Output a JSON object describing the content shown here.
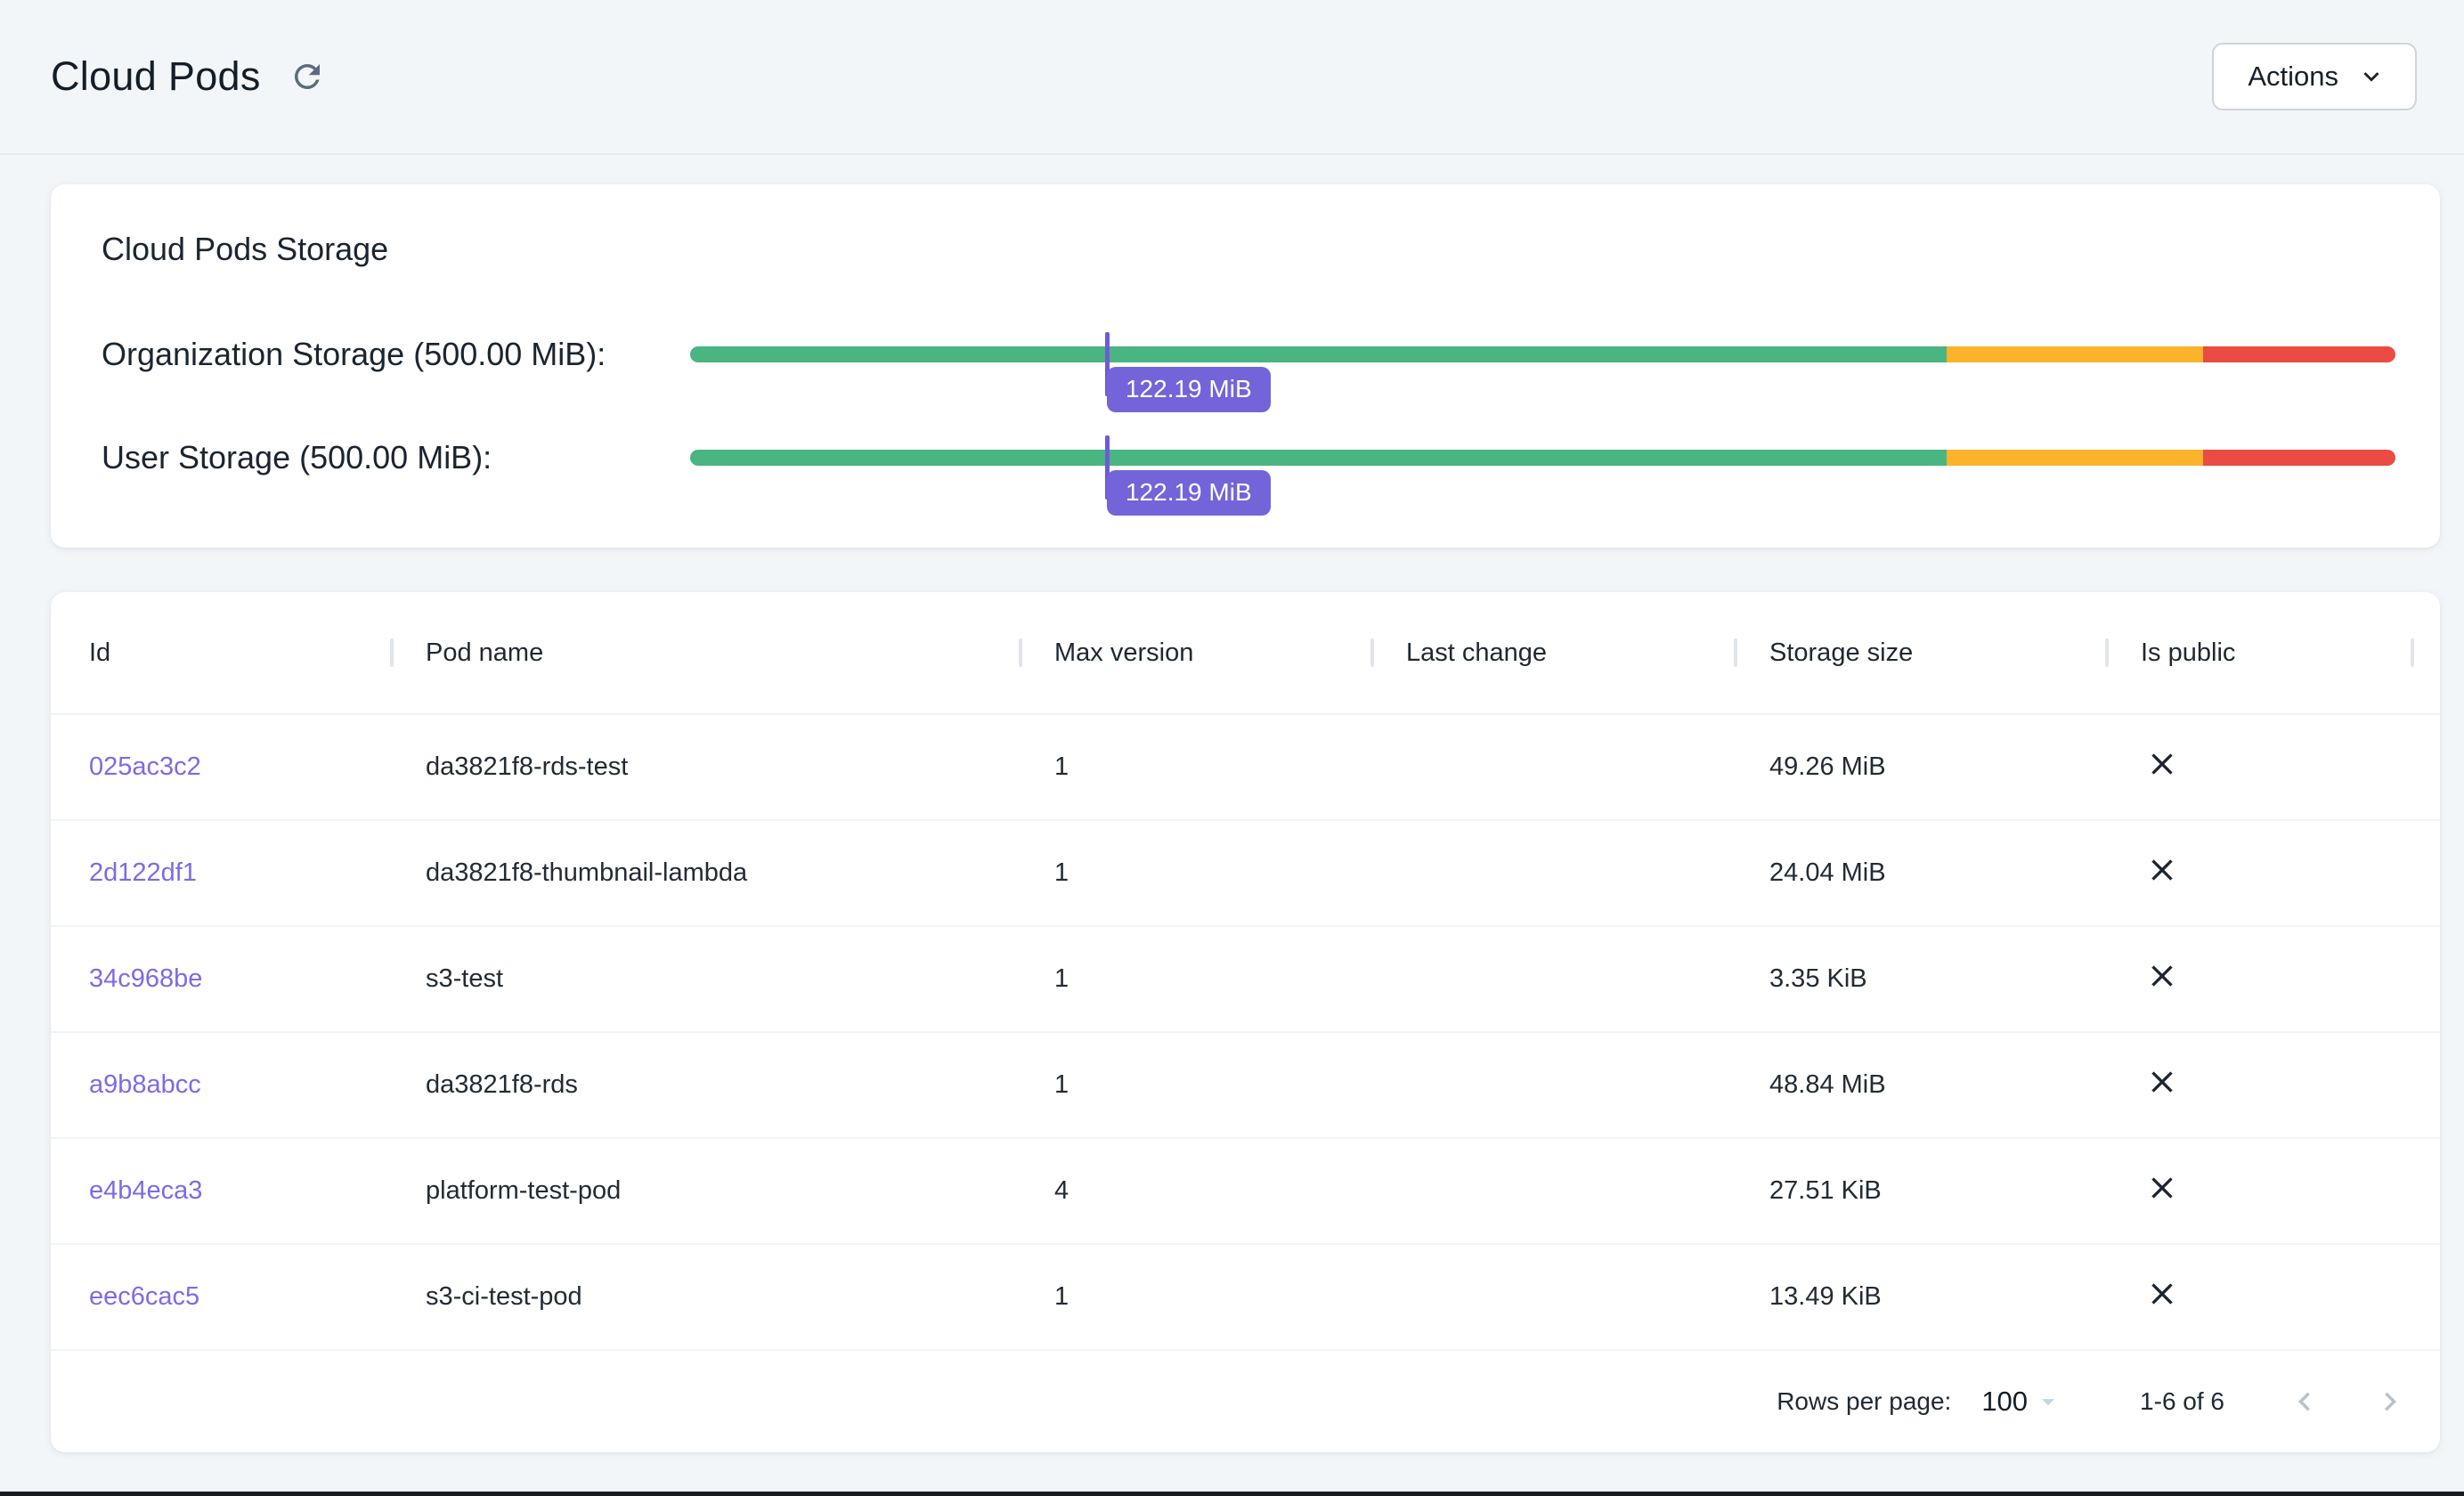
{
  "header": {
    "title": "Cloud Pods",
    "actions_label": "Actions"
  },
  "storage": {
    "card_title": "Cloud Pods Storage",
    "colors": {
      "safe": "#49b581",
      "warning": "#fbb32b",
      "critical": "#ea4b42",
      "marker": "#6e5bd6",
      "tooltip": "#7464da"
    },
    "segments": [
      {
        "name": "safe",
        "percent": 73.7
      },
      {
        "name": "warning",
        "percent": 15.0
      },
      {
        "name": "critical",
        "percent": 11.3
      }
    ],
    "bars": [
      {
        "label": "Organization Storage (500.00 MiB):",
        "used_mib": 122.19,
        "total_mib": 500,
        "tooltip": "122.19 MiB"
      },
      {
        "label": "User Storage (500.00 MiB):",
        "used_mib": 122.19,
        "total_mib": 500,
        "tooltip": "122.19 MiB"
      }
    ]
  },
  "table": {
    "id_link_color": "#7c6be6",
    "columns": [
      "Id",
      "Pod name",
      "Max version",
      "Last change",
      "Storage size",
      "Is public"
    ],
    "rows": [
      {
        "id": "025ac3c2",
        "pod_name": "da3821f8-rds-test",
        "max_version": "1",
        "last_change": "",
        "storage_size": "49.26 MiB",
        "is_public": false
      },
      {
        "id": "2d122df1",
        "pod_name": "da3821f8-thumbnail-lambda",
        "max_version": "1",
        "last_change": "",
        "storage_size": "24.04 MiB",
        "is_public": false
      },
      {
        "id": "34c968be",
        "pod_name": "s3-test",
        "max_version": "1",
        "last_change": "",
        "storage_size": "3.35 KiB",
        "is_public": false
      },
      {
        "id": "a9b8abcc",
        "pod_name": "da3821f8-rds",
        "max_version": "1",
        "last_change": "",
        "storage_size": "48.84 MiB",
        "is_public": false
      },
      {
        "id": "e4b4eca3",
        "pod_name": "platform-test-pod",
        "max_version": "4",
        "last_change": "",
        "storage_size": "27.51 KiB",
        "is_public": false
      },
      {
        "id": "eec6cac5",
        "pod_name": "s3-ci-test-pod",
        "max_version": "1",
        "last_change": "",
        "storage_size": "13.49 KiB",
        "is_public": false
      }
    ],
    "footer": {
      "rows_per_page_label": "Rows per page:",
      "rows_per_page_value": "100",
      "range_label": "1-6 of 6"
    }
  }
}
